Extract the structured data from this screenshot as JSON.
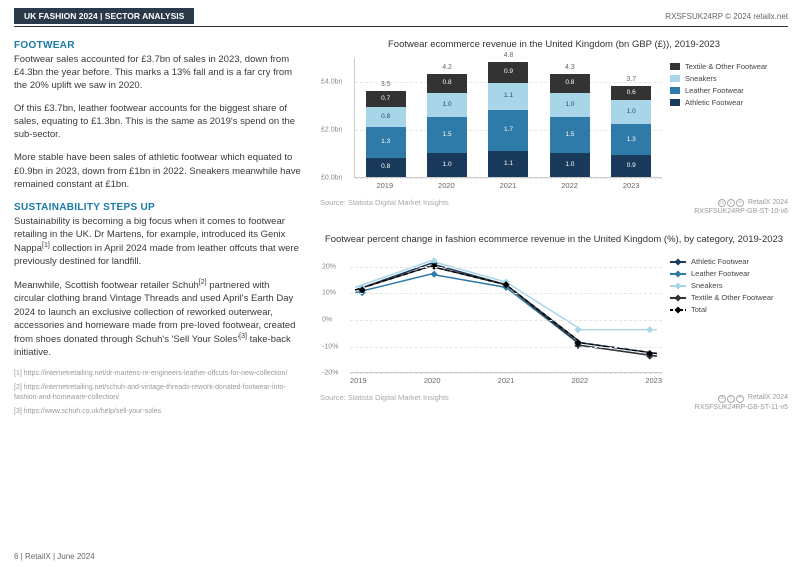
{
  "header": {
    "tag": "UK FASHION 2024 | SECTOR ANALYSIS",
    "right": "RXSFSUK24RP © 2024 retailx.net"
  },
  "leftCol": {
    "h1": "FOOTWEAR",
    "p1": "Footwear sales accounted for £3.7bn of sales in 2023, down from £4.3bn the year before. This marks a 13% fall and is a far cry from the 20% uplift we saw in 2020.",
    "p2": "Of this £3.7bn, leather footwear accounts for the biggest share of sales, equating to £1.3bn. This is the same as 2019's spend on the sub-sector.",
    "p3": "More stable have been sales of athletic footwear which equated to £0.9bn in 2023, down from £1bn in 2022. Sneakers meanwhile have remained constant at £1bn.",
    "h2": "SUSTAINABILITY STEPS UP",
    "p4a": "Sustainability is becoming a big focus when it comes to footwear retailing in the UK. Dr Martens, for example, introduced its Genix Nappa",
    "p4b": " collection in April 2024 made from leather offcuts that were previously destined for landfill.",
    "p5a": "Meanwhile, Scottish footwear retailer Schuh",
    "p5b": " partnered with circular clothing brand Vintage Threads and used April's Earth Day 2024 to launch an exclusive collection of reworked outerwear, accessories and homeware made from pre-loved footwear, created from shoes donated through Schuh's 'Sell Your Soles'",
    "p5c": " take-back initiative.",
    "fn1": "[1] https://internetretailing.net/dr-martens-re-engineers-leather-offcuts-for-new-collection/",
    "fn2": "[2] https://internetretailing.net/schuh-and-vintage-threads-rework-donated-footwear-into-fashion-and-homeware-collection/",
    "fn3": "[3] https://www.schuh.co.uk/help/sell-your-soles"
  },
  "chart1": {
    "type": "stacked-bar",
    "title": "Footwear ecommerce revenue in the United Kingdom (bn GBP (£)), 2019-2023",
    "ylabels": [
      "£0.0bn",
      "£2.0bn",
      "£4.0bn"
    ],
    "ylim_max": 5.0,
    "ytick_values": [
      0,
      2,
      4
    ],
    "categories": [
      "2019",
      "2020",
      "2021",
      "2022",
      "2023"
    ],
    "segments": [
      "Athletic Footwear",
      "Leather Footwear",
      "Sneakers",
      "Textile & Other Footwear"
    ],
    "colors": [
      "#1a3a5c",
      "#2e7aa8",
      "#a8d5e8",
      "#333333"
    ],
    "totals": [
      "3.5",
      "4.2",
      "4.8",
      "4.3",
      "3.7"
    ],
    "data": [
      [
        0.8,
        1.3,
        0.8,
        0.7
      ],
      [
        1.0,
        1.5,
        1.0,
        0.8
      ],
      [
        1.1,
        1.7,
        1.1,
        0.9
      ],
      [
        1.0,
        1.5,
        1.0,
        0.8
      ],
      [
        0.9,
        1.3,
        1.0,
        0.6
      ]
    ],
    "legend": [
      "Textile & Other Footwear",
      "Sneakers",
      "Leather Footwear",
      "Athletic Footwear"
    ],
    "legend_colors": [
      "#333333",
      "#a8d5e8",
      "#2e7aa8",
      "#1a3a5c"
    ],
    "background_color": "#ffffff",
    "grid_color": "#e6e6e6"
  },
  "chart2": {
    "type": "line",
    "title": "Footwear percent change in fashion ecommerce revenue in the United Kingdom (%), by category, 2019-2023",
    "categories": [
      "2019",
      "2020",
      "2021",
      "2022",
      "2023"
    ],
    "ylabels": [
      "-20%",
      "-10%",
      "0%",
      "10%",
      "20%"
    ],
    "ylim": [
      -20,
      25
    ],
    "ytick_values": [
      -20,
      -10,
      0,
      10,
      20
    ],
    "legend": [
      "Athletic Footwear",
      "Leather Footwear",
      "Sneakers",
      "Textile & Other Footwear",
      "Total"
    ],
    "legend_colors": [
      "#1a3a5c",
      "#2e7aa8",
      "#a8d5e8",
      "#333333",
      "#000000"
    ],
    "legend_dash": [
      false,
      false,
      false,
      false,
      true
    ],
    "series": {
      "Athletic Footwear": {
        "color": "#1a3a5c",
        "dash": false,
        "values": [
          11,
          21,
          13,
          -9,
          -13
        ]
      },
      "Leather Footwear": {
        "color": "#2e7aa8",
        "dash": false,
        "values": [
          10,
          17,
          12,
          -10,
          -14
        ]
      },
      "Sneakers": {
        "color": "#a8d5e8",
        "dash": false,
        "values": [
          12,
          22,
          14,
          -4,
          -4
        ]
      },
      "Textile & Other Footwear": {
        "color": "#333333",
        "dash": false,
        "values": [
          11,
          20,
          13,
          -10,
          -14
        ]
      },
      "Total": {
        "color": "#000000",
        "dash": true,
        "values": [
          11,
          20,
          13,
          -9,
          -13
        ]
      }
    },
    "background_color": "#ffffff",
    "grid_color": "#e6e6e6",
    "marker": "diamond",
    "marker_size": 5,
    "line_width": 1.5
  },
  "sourceLine": {
    "source": "Source: Statista Digital Market Insights",
    "brand": "RetailX 2024",
    "code1": "RXSFSUK24RP-GB-ST-10-v6",
    "code2": "RXSFSUK24RP-GB-ST-11-v5"
  },
  "footer": "6 | RetailX | June 2024"
}
